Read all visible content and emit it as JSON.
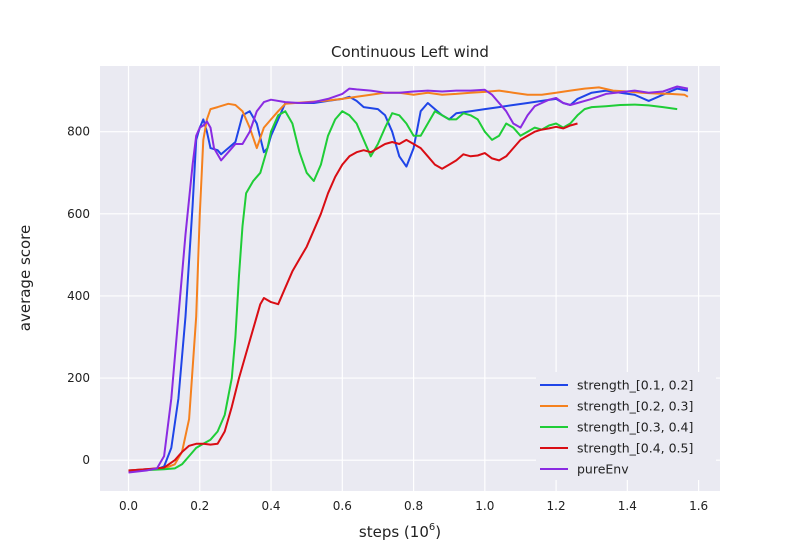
{
  "chart_data": {
    "type": "line",
    "title": "Continuous Left wind",
    "xlabel": "steps (10",
    "xlabel_exp": "6",
    "xlabel_close": ")",
    "ylabel": "average score",
    "xlim": [
      -0.08,
      1.66
    ],
    "ylim": [
      -75,
      960
    ],
    "xticks": [
      0.0,
      0.2,
      0.4,
      0.6,
      0.8,
      1.0,
      1.2,
      1.4,
      1.6
    ],
    "xtick_labels": [
      "0.0",
      "0.2",
      "0.4",
      "0.6",
      "0.8",
      "1.0",
      "1.2",
      "1.4",
      "1.6"
    ],
    "yticks": [
      0,
      200,
      400,
      600,
      800
    ],
    "ytick_labels": [
      "0",
      "200",
      "400",
      "600",
      "800"
    ],
    "grid": true,
    "legend_position": "bottom-right",
    "background": "#eaeaf2",
    "series": [
      {
        "name": "strength_[0.1, 0.2]",
        "color": "#1f45e8",
        "points": [
          [
            0.0,
            -25
          ],
          [
            0.05,
            -22
          ],
          [
            0.08,
            -22
          ],
          [
            0.1,
            -15
          ],
          [
            0.12,
            30
          ],
          [
            0.14,
            150
          ],
          [
            0.16,
            350
          ],
          [
            0.18,
            620
          ],
          [
            0.19,
            780
          ],
          [
            0.2,
            810
          ],
          [
            0.21,
            830
          ],
          [
            0.22,
            800
          ],
          [
            0.23,
            760
          ],
          [
            0.25,
            755
          ],
          [
            0.26,
            745
          ],
          [
            0.28,
            760
          ],
          [
            0.3,
            775
          ],
          [
            0.32,
            840
          ],
          [
            0.34,
            850
          ],
          [
            0.36,
            820
          ],
          [
            0.38,
            750
          ],
          [
            0.39,
            760
          ],
          [
            0.4,
            790
          ],
          [
            0.42,
            830
          ],
          [
            0.44,
            870
          ],
          [
            0.48,
            870
          ],
          [
            0.52,
            870
          ],
          [
            0.56,
            875
          ],
          [
            0.6,
            880
          ],
          [
            0.62,
            885
          ],
          [
            0.64,
            875
          ],
          [
            0.66,
            860
          ],
          [
            0.7,
            855
          ],
          [
            0.72,
            840
          ],
          [
            0.74,
            800
          ],
          [
            0.76,
            740
          ],
          [
            0.78,
            715
          ],
          [
            0.8,
            760
          ],
          [
            0.82,
            850
          ],
          [
            0.84,
            870
          ],
          [
            0.86,
            855
          ],
          [
            0.88,
            840
          ],
          [
            0.9,
            830
          ],
          [
            0.92,
            845
          ],
          [
            0.96,
            850
          ],
          [
            1.0,
            855
          ],
          [
            1.04,
            860
          ],
          [
            1.08,
            865
          ],
          [
            1.12,
            870
          ],
          [
            1.16,
            875
          ],
          [
            1.2,
            880
          ],
          [
            1.22,
            870
          ],
          [
            1.24,
            865
          ],
          [
            1.26,
            880
          ],
          [
            1.3,
            895
          ],
          [
            1.34,
            900
          ],
          [
            1.38,
            895
          ],
          [
            1.42,
            890
          ],
          [
            1.46,
            875
          ],
          [
            1.5,
            890
          ],
          [
            1.54,
            905
          ],
          [
            1.57,
            900
          ]
        ]
      },
      {
        "name": "strength_[0.2, 0.3]",
        "color": "#f5811e",
        "points": [
          [
            0.0,
            -25
          ],
          [
            0.05,
            -22
          ],
          [
            0.1,
            -20
          ],
          [
            0.13,
            -10
          ],
          [
            0.15,
            20
          ],
          [
            0.17,
            100
          ],
          [
            0.19,
            350
          ],
          [
            0.2,
            600
          ],
          [
            0.21,
            780
          ],
          [
            0.22,
            830
          ],
          [
            0.23,
            855
          ],
          [
            0.25,
            860
          ],
          [
            0.28,
            868
          ],
          [
            0.3,
            865
          ],
          [
            0.32,
            850
          ],
          [
            0.34,
            810
          ],
          [
            0.36,
            760
          ],
          [
            0.38,
            810
          ],
          [
            0.4,
            830
          ],
          [
            0.42,
            850
          ],
          [
            0.44,
            868
          ],
          [
            0.5,
            872
          ],
          [
            0.56,
            876
          ],
          [
            0.6,
            880
          ],
          [
            0.64,
            885
          ],
          [
            0.68,
            890
          ],
          [
            0.72,
            895
          ],
          [
            0.76,
            895
          ],
          [
            0.8,
            890
          ],
          [
            0.84,
            895
          ],
          [
            0.88,
            890
          ],
          [
            0.92,
            892
          ],
          [
            0.96,
            895
          ],
          [
            1.0,
            897
          ],
          [
            1.04,
            900
          ],
          [
            1.08,
            895
          ],
          [
            1.12,
            890
          ],
          [
            1.16,
            890
          ],
          [
            1.2,
            895
          ],
          [
            1.24,
            900
          ],
          [
            1.28,
            905
          ],
          [
            1.32,
            908
          ],
          [
            1.36,
            900
          ],
          [
            1.4,
            898
          ],
          [
            1.44,
            895
          ],
          [
            1.48,
            893
          ],
          [
            1.52,
            892
          ],
          [
            1.56,
            890
          ],
          [
            1.57,
            885
          ]
        ]
      },
      {
        "name": "strength_[0.3, 0.4]",
        "color": "#1fcd37",
        "points": [
          [
            0.0,
            -28
          ],
          [
            0.05,
            -24
          ],
          [
            0.1,
            -22
          ],
          [
            0.13,
            -20
          ],
          [
            0.15,
            -10
          ],
          [
            0.17,
            10
          ],
          [
            0.19,
            30
          ],
          [
            0.21,
            40
          ],
          [
            0.23,
            50
          ],
          [
            0.25,
            70
          ],
          [
            0.27,
            110
          ],
          [
            0.29,
            200
          ],
          [
            0.3,
            300
          ],
          [
            0.31,
            450
          ],
          [
            0.32,
            570
          ],
          [
            0.33,
            650
          ],
          [
            0.35,
            680
          ],
          [
            0.37,
            700
          ],
          [
            0.39,
            760
          ],
          [
            0.4,
            800
          ],
          [
            0.42,
            840
          ],
          [
            0.44,
            850
          ],
          [
            0.46,
            820
          ],
          [
            0.48,
            750
          ],
          [
            0.5,
            700
          ],
          [
            0.52,
            680
          ],
          [
            0.54,
            720
          ],
          [
            0.56,
            790
          ],
          [
            0.58,
            830
          ],
          [
            0.6,
            850
          ],
          [
            0.62,
            840
          ],
          [
            0.64,
            820
          ],
          [
            0.66,
            780
          ],
          [
            0.68,
            740
          ],
          [
            0.7,
            770
          ],
          [
            0.72,
            810
          ],
          [
            0.74,
            845
          ],
          [
            0.76,
            840
          ],
          [
            0.78,
            820
          ],
          [
            0.8,
            790
          ],
          [
            0.82,
            790
          ],
          [
            0.84,
            820
          ],
          [
            0.86,
            850
          ],
          [
            0.88,
            840
          ],
          [
            0.9,
            830
          ],
          [
            0.92,
            830
          ],
          [
            0.94,
            845
          ],
          [
            0.96,
            840
          ],
          [
            0.98,
            830
          ],
          [
            1.0,
            800
          ],
          [
            1.02,
            780
          ],
          [
            1.04,
            790
          ],
          [
            1.06,
            820
          ],
          [
            1.08,
            810
          ],
          [
            1.1,
            790
          ],
          [
            1.12,
            800
          ],
          [
            1.14,
            810
          ],
          [
            1.16,
            805
          ],
          [
            1.18,
            815
          ],
          [
            1.2,
            820
          ],
          [
            1.22,
            810
          ],
          [
            1.24,
            820
          ],
          [
            1.26,
            840
          ],
          [
            1.28,
            855
          ],
          [
            1.3,
            860
          ],
          [
            1.34,
            862
          ],
          [
            1.38,
            865
          ],
          [
            1.42,
            866
          ],
          [
            1.46,
            864
          ],
          [
            1.5,
            860
          ],
          [
            1.54,
            855
          ]
        ]
      },
      {
        "name": "strength_[0.4, 0.5]",
        "color": "#d90d14",
        "points": [
          [
            0.0,
            -25
          ],
          [
            0.05,
            -22
          ],
          [
            0.1,
            -18
          ],
          [
            0.13,
            0
          ],
          [
            0.15,
            20
          ],
          [
            0.17,
            35
          ],
          [
            0.19,
            40
          ],
          [
            0.21,
            40
          ],
          [
            0.23,
            38
          ],
          [
            0.25,
            40
          ],
          [
            0.27,
            70
          ],
          [
            0.29,
            130
          ],
          [
            0.31,
            200
          ],
          [
            0.33,
            260
          ],
          [
            0.35,
            320
          ],
          [
            0.37,
            380
          ],
          [
            0.38,
            395
          ],
          [
            0.4,
            385
          ],
          [
            0.42,
            380
          ],
          [
            0.44,
            420
          ],
          [
            0.46,
            460
          ],
          [
            0.48,
            490
          ],
          [
            0.5,
            520
          ],
          [
            0.52,
            560
          ],
          [
            0.54,
            600
          ],
          [
            0.56,
            650
          ],
          [
            0.58,
            690
          ],
          [
            0.6,
            720
          ],
          [
            0.62,
            740
          ],
          [
            0.64,
            750
          ],
          [
            0.66,
            755
          ],
          [
            0.68,
            750
          ],
          [
            0.7,
            760
          ],
          [
            0.72,
            770
          ],
          [
            0.74,
            775
          ],
          [
            0.76,
            770
          ],
          [
            0.78,
            780
          ],
          [
            0.8,
            770
          ],
          [
            0.82,
            760
          ],
          [
            0.84,
            740
          ],
          [
            0.86,
            720
          ],
          [
            0.88,
            710
          ],
          [
            0.9,
            720
          ],
          [
            0.92,
            730
          ],
          [
            0.94,
            745
          ],
          [
            0.96,
            740
          ],
          [
            0.98,
            742
          ],
          [
            1.0,
            748
          ],
          [
            1.02,
            735
          ],
          [
            1.04,
            730
          ],
          [
            1.06,
            740
          ],
          [
            1.08,
            760
          ],
          [
            1.1,
            780
          ],
          [
            1.12,
            790
          ],
          [
            1.14,
            800
          ],
          [
            1.16,
            805
          ],
          [
            1.18,
            808
          ],
          [
            1.2,
            812
          ],
          [
            1.22,
            808
          ],
          [
            1.24,
            815
          ],
          [
            1.26,
            820
          ]
        ]
      },
      {
        "name": "pureEnv",
        "color": "#8a2be2",
        "points": [
          [
            0.0,
            -30
          ],
          [
            0.05,
            -25
          ],
          [
            0.08,
            -20
          ],
          [
            0.1,
            10
          ],
          [
            0.12,
            150
          ],
          [
            0.14,
            350
          ],
          [
            0.16,
            550
          ],
          [
            0.18,
            720
          ],
          [
            0.19,
            790
          ],
          [
            0.2,
            810
          ],
          [
            0.21,
            815
          ],
          [
            0.22,
            825
          ],
          [
            0.23,
            810
          ],
          [
            0.24,
            760
          ],
          [
            0.26,
            730
          ],
          [
            0.28,
            750
          ],
          [
            0.3,
            770
          ],
          [
            0.32,
            770
          ],
          [
            0.34,
            800
          ],
          [
            0.36,
            850
          ],
          [
            0.38,
            872
          ],
          [
            0.4,
            878
          ],
          [
            0.44,
            872
          ],
          [
            0.48,
            870
          ],
          [
            0.52,
            872
          ],
          [
            0.56,
            880
          ],
          [
            0.6,
            892
          ],
          [
            0.62,
            905
          ],
          [
            0.64,
            903
          ],
          [
            0.68,
            900
          ],
          [
            0.72,
            895
          ],
          [
            0.76,
            895
          ],
          [
            0.8,
            898
          ],
          [
            0.84,
            900
          ],
          [
            0.88,
            898
          ],
          [
            0.92,
            900
          ],
          [
            0.96,
            900
          ],
          [
            1.0,
            902
          ],
          [
            1.02,
            890
          ],
          [
            1.04,
            870
          ],
          [
            1.06,
            850
          ],
          [
            1.08,
            820
          ],
          [
            1.1,
            810
          ],
          [
            1.12,
            840
          ],
          [
            1.14,
            862
          ],
          [
            1.16,
            870
          ],
          [
            1.18,
            878
          ],
          [
            1.2,
            882
          ],
          [
            1.22,
            870
          ],
          [
            1.24,
            865
          ],
          [
            1.26,
            870
          ],
          [
            1.3,
            880
          ],
          [
            1.34,
            892
          ],
          [
            1.38,
            896
          ],
          [
            1.42,
            900
          ],
          [
            1.46,
            895
          ],
          [
            1.5,
            898
          ],
          [
            1.54,
            910
          ],
          [
            1.57,
            905
          ]
        ]
      }
    ]
  }
}
